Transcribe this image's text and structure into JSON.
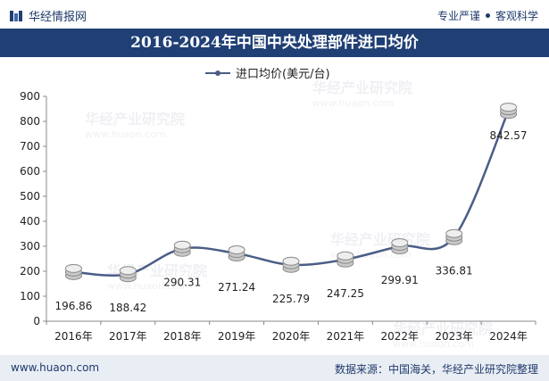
{
  "header": {
    "brand": "华经情报网",
    "tagline_left": "专业严谨",
    "tagline_right": "客观科学"
  },
  "title": "2016-2024年中国中央处理部件进口均价",
  "watermark": {
    "text": "华经产业研究院",
    "url": "www.huaon.com"
  },
  "footer": {
    "website": "www.huaon.com",
    "source": "数据来源：中国海关，华经产业研究院整理"
  },
  "colors": {
    "title_bg": "#1f3f75",
    "line": "#4a5d86",
    "axis": "#888888",
    "text": "#222222",
    "footer_bg": "#e9edf4"
  },
  "chart_data": {
    "type": "line",
    "title": "2016-2024年中国中央处理部件进口均价",
    "categories": [
      "2016年",
      "2017年",
      "2018年",
      "2019年",
      "2020年",
      "2021年",
      "2022年",
      "2023年",
      "2024年"
    ],
    "series": [
      {
        "name": "进口均价(美元/台)",
        "values": [
          196.86,
          188.42,
          290.31,
          271.24,
          225.79,
          247.25,
          299.91,
          336.81,
          842.57
        ]
      }
    ],
    "value_labels": [
      "196.86",
      "188.42",
      "290.31",
      "271.24",
      "225.79",
      "247.25",
      "299.91",
      "336.81",
      "842.57"
    ],
    "ylim": [
      0,
      900
    ],
    "yticks": [
      0,
      100,
      200,
      300,
      400,
      500,
      600,
      700,
      800,
      900
    ],
    "legend": "top-center",
    "grid": false,
    "xlabel": "",
    "ylabel": ""
  }
}
